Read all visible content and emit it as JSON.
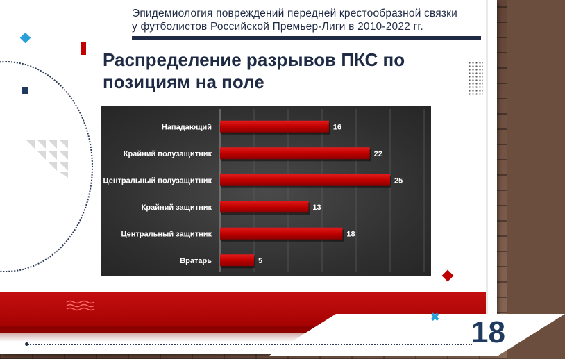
{
  "header": {
    "line1": "Эпидемиология повреждений передней крестообразной связки",
    "line2": "у футболистов Российской Премьер-Лиги в 2010-2022 гг."
  },
  "title": {
    "line1": "Распределение разрывов ПКС по",
    "line2": "позициям на поле"
  },
  "page_number": "18",
  "colors": {
    "navy": "#1f2a44",
    "red": "#c00000",
    "accent_blue": "#2aa0d8",
    "chart_bg": "#333333",
    "bar": "#c00000"
  },
  "chart_data": {
    "type": "bar",
    "orientation": "horizontal",
    "categories": [
      "Нападающий",
      "Крайний полузащитник",
      "Центральный полузащитник",
      "Крайний защитник",
      "Центральный защитник",
      "Вратарь"
    ],
    "values": [
      16,
      22,
      25,
      13,
      18,
      5
    ],
    "data_labels": [
      "16",
      "22",
      "25",
      "13",
      "18",
      "5"
    ],
    "xlim": [
      0,
      30
    ],
    "grid": true,
    "legend": "none"
  }
}
